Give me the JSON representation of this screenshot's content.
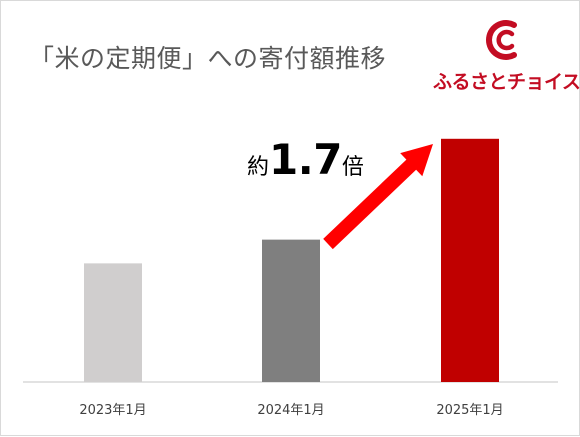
{
  "colors": {
    "brand": "#c30d23",
    "bar_2023": "#d0cece",
    "bar_2024": "#7f7f7f",
    "bar_2025": "#c00000",
    "arrow": "#ff0000",
    "axis": "#d9d9d9",
    "title": "#595959"
  },
  "logo": {
    "icon": "furusato-choice-c-logo-icon",
    "text": "ふるさとチョイス"
  },
  "annotation": {
    "prefix": "約",
    "value": "1.7",
    "suffix": "倍"
  },
  "chart_data": {
    "type": "bar",
    "title": "「米の定期便」への寄付額推移",
    "xlabel": "",
    "ylabel": "",
    "categories": [
      "2023年1月",
      "2024年1月",
      "2025年1月"
    ],
    "values": [
      1.0,
      1.2,
      2.05
    ],
    "ylim": [
      0,
      2.2
    ],
    "grid": false,
    "legend": "none",
    "axes_visible": {
      "y": false,
      "x": true
    },
    "bar_colors": [
      "#d0cece",
      "#7f7f7f",
      "#c00000"
    ],
    "annotation": {
      "text": "約1.7倍",
      "from_category": "2024年1月",
      "to_category": "2025年1月",
      "shape": "arrow"
    }
  }
}
